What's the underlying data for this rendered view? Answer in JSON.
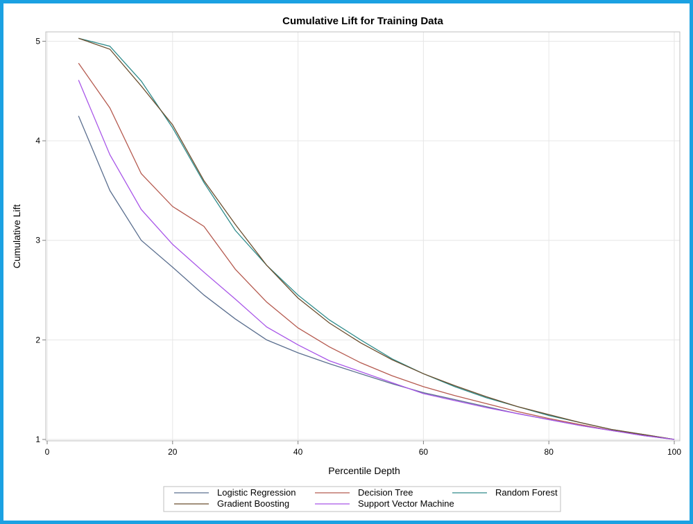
{
  "chart_data": {
    "type": "line",
    "title": "Cumulative Lift for Training Data",
    "xlabel": "Percentile Depth",
    "ylabel": "Cumulative Lift",
    "xlim": [
      0,
      100
    ],
    "ylim": [
      1,
      5.08
    ],
    "xticks": [
      0,
      20,
      40,
      60,
      80,
      100
    ],
    "yticks": [
      1,
      2,
      3,
      4,
      5
    ],
    "grid": true,
    "legend_position": "bottom",
    "x": [
      5,
      10,
      15,
      20,
      25,
      30,
      35,
      40,
      45,
      50,
      55,
      60,
      65,
      70,
      75,
      80,
      85,
      90,
      95,
      100
    ],
    "series": [
      {
        "name": "Logistic Regression",
        "color": "#5b6f8f",
        "values": [
          4.25,
          3.5,
          3.0,
          2.73,
          2.45,
          2.21,
          2.0,
          1.87,
          1.76,
          1.66,
          1.56,
          1.47,
          1.4,
          1.33,
          1.26,
          1.2,
          1.14,
          1.09,
          1.04,
          1.0
        ]
      },
      {
        "name": "Decision Tree",
        "color": "#b55a4f",
        "values": [
          4.78,
          4.33,
          3.67,
          3.34,
          3.14,
          2.71,
          2.38,
          2.12,
          1.93,
          1.77,
          1.64,
          1.53,
          1.44,
          1.36,
          1.28,
          1.21,
          1.15,
          1.09,
          1.05,
          1.0
        ]
      },
      {
        "name": "Random Forest",
        "color": "#2e8b8b",
        "values": [
          5.03,
          4.95,
          4.6,
          4.13,
          3.58,
          3.1,
          2.75,
          2.45,
          2.2,
          2.0,
          1.81,
          1.66,
          1.53,
          1.42,
          1.33,
          1.24,
          1.17,
          1.1,
          1.05,
          1.0
        ]
      },
      {
        "name": "Gradient Boosting",
        "color": "#6b4e2e",
        "values": [
          5.03,
          4.92,
          4.55,
          4.16,
          3.6,
          3.16,
          2.75,
          2.42,
          2.17,
          1.97,
          1.8,
          1.66,
          1.54,
          1.43,
          1.33,
          1.25,
          1.17,
          1.1,
          1.05,
          1.0
        ]
      },
      {
        "name": "Support Vector Machine",
        "color": "#a855e8",
        "values": [
          4.61,
          3.86,
          3.31,
          2.96,
          2.68,
          2.41,
          2.13,
          1.95,
          1.79,
          1.68,
          1.57,
          1.46,
          1.39,
          1.32,
          1.26,
          1.2,
          1.14,
          1.09,
          1.04,
          1.0
        ]
      }
    ]
  }
}
